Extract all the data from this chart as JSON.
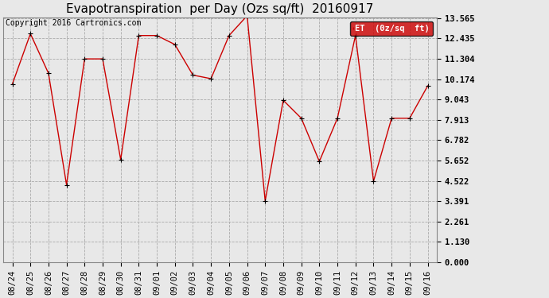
{
  "title": "Evapotranspiration  per Day (Ozs sq/ft)  20160917",
  "copyright_text": "Copyright 2016 Cartronics.com",
  "legend_label": "ET  (0z/sq  ft)",
  "x_labels": [
    "08/24",
    "08/25",
    "08/26",
    "08/27",
    "08/28",
    "08/29",
    "08/30",
    "08/31",
    "09/01",
    "09/02",
    "09/03",
    "09/04",
    "09/05",
    "09/06",
    "09/07",
    "09/08",
    "09/09",
    "09/10",
    "09/11",
    "09/12",
    "09/13",
    "09/14",
    "09/15",
    "09/16"
  ],
  "y_values": [
    9.9,
    12.7,
    10.5,
    4.3,
    11.3,
    11.3,
    5.7,
    12.6,
    12.6,
    12.1,
    10.4,
    10.2,
    12.6,
    13.7,
    3.4,
    9.0,
    8.0,
    5.6,
    8.0,
    12.6,
    4.5,
    8.0,
    8.0,
    9.8
  ],
  "y_ticks": [
    0.0,
    1.13,
    2.261,
    3.391,
    4.522,
    5.652,
    6.782,
    7.913,
    9.043,
    10.174,
    11.304,
    12.435,
    13.565
  ],
  "y_min": 0.0,
  "y_max": 13.565,
  "line_color": "#cc0000",
  "marker": "+",
  "bg_color": "#e8e8e8",
  "grid_color": "#aaaaaa",
  "legend_bg": "#cc0000",
  "legend_text_color": "#ffffff",
  "title_fontsize": 11,
  "tick_fontsize": 7.5,
  "copyright_fontsize": 7
}
